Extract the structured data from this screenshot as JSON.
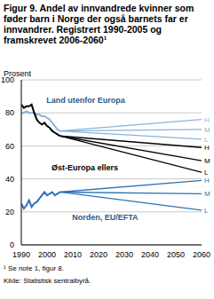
{
  "chart_data": {
    "type": "line",
    "title": "Figur 9. Andel av innvandrede kvinner som føder barn i Norge der også barnets far er innvandrer. Registrert 1990-2005 og framskrevet 2006-2060¹",
    "y_label": "Prosent",
    "x": [
      1990,
      1991,
      1992,
      1993,
      1994,
      1995,
      1996,
      1997,
      1998,
      1999,
      2000,
      2001,
      2002,
      2003,
      2004,
      2005,
      2060
    ],
    "xlim": [
      1990,
      2060
    ],
    "xticks": [
      1990,
      2000,
      2010,
      2020,
      2030,
      2040,
      2050,
      2060
    ],
    "ylim": [
      0,
      100
    ],
    "yticks": [
      0,
      20,
      40,
      60,
      80,
      100
    ],
    "grid": true,
    "series": [
      {
        "name": "Land utenfor Europa",
        "color": "#8db3d9",
        "values": [
          80,
          80,
          81,
          80,
          80,
          80,
          79,
          79,
          78,
          78,
          77,
          76,
          74,
          72,
          70,
          69,
          null
        ],
        "projections": [
          {
            "name": "H",
            "values": [
              null,
              null,
              null,
              null,
              null,
              null,
              null,
              null,
              null,
              null,
              null,
              null,
              null,
              null,
              null,
              69,
              76
            ]
          },
          {
            "name": "M",
            "values": [
              null,
              null,
              null,
              null,
              null,
              null,
              null,
              null,
              null,
              null,
              null,
              null,
              null,
              null,
              null,
              69,
              70
            ]
          },
          {
            "name": "L",
            "values": [
              null,
              null,
              null,
              null,
              null,
              null,
              null,
              null,
              null,
              null,
              null,
              null,
              null,
              null,
              null,
              69,
              64
            ]
          }
        ]
      },
      {
        "name": "Øst-Europa ellers",
        "color": "#000000",
        "values": [
          85,
          83,
          84,
          84,
          85,
          80,
          76,
          74,
          73,
          74,
          72,
          71,
          69,
          68,
          67,
          66,
          null
        ],
        "projections": [
          {
            "name": "H",
            "values": [
              null,
              null,
              null,
              null,
              null,
              null,
              null,
              null,
              null,
              null,
              null,
              null,
              null,
              null,
              null,
              66,
              59
            ]
          },
          {
            "name": "M",
            "values": [
              null,
              null,
              null,
              null,
              null,
              null,
              null,
              null,
              null,
              null,
              null,
              null,
              null,
              null,
              null,
              66,
              51
            ]
          },
          {
            "name": "L",
            "values": [
              null,
              null,
              null,
              null,
              null,
              null,
              null,
              null,
              null,
              null,
              null,
              null,
              null,
              null,
              null,
              66,
              44
            ]
          }
        ]
      },
      {
        "name": "Norden, EU/EFTA",
        "color": "#2f73b8",
        "values": [
          25,
          22,
          24,
          27,
          23,
          25,
          26,
          28,
          30,
          32,
          30,
          31,
          32,
          30,
          31,
          32,
          null
        ],
        "projections": [
          {
            "name": "H",
            "values": [
              null,
              null,
              null,
              null,
              null,
              null,
              null,
              null,
              null,
              null,
              null,
              null,
              null,
              null,
              null,
              32,
              39
            ]
          },
          {
            "name": "M",
            "values": [
              null,
              null,
              null,
              null,
              null,
              null,
              null,
              null,
              null,
              null,
              null,
              null,
              null,
              null,
              null,
              32,
              31
            ]
          },
          {
            "name": "L",
            "values": [
              null,
              null,
              null,
              null,
              null,
              null,
              null,
              null,
              null,
              null,
              null,
              null,
              null,
              null,
              null,
              32,
              21
            ]
          }
        ]
      }
    ],
    "footnote": "¹ Se note 1, figur 8.",
    "source": "Kilde: Statistisk sentralbyrå."
  }
}
